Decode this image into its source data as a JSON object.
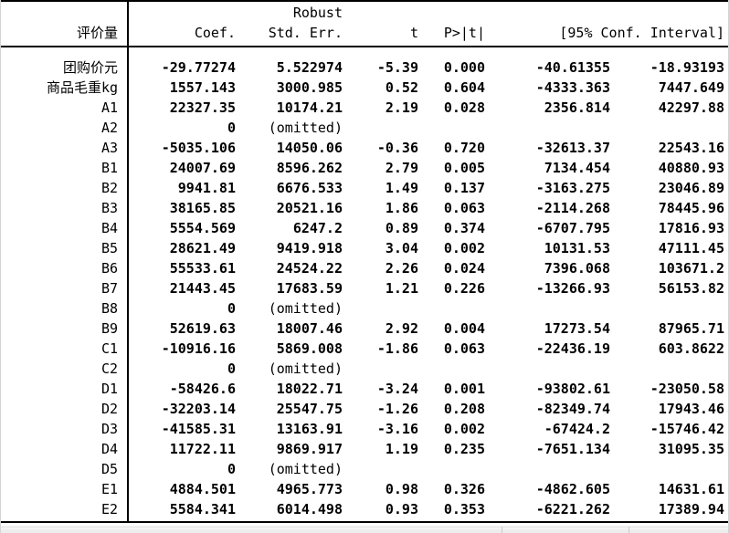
{
  "table": {
    "header": {
      "robust_label": "Robust",
      "col_variable": "评价量",
      "col_coef": "Coef.",
      "col_std_err": "Std. Err.",
      "col_t": "t",
      "col_p": "P>|t|",
      "col_ci": "[95% Conf. Interval]"
    },
    "rows": [
      {
        "label": "团购价元",
        "coef": "-29.77274",
        "se": "5.522974",
        "t": "-5.39",
        "p": "0.000",
        "ci_low": "-40.61355",
        "ci_high": "-18.93193"
      },
      {
        "label": "商品毛重kg",
        "coef": "1557.143",
        "se": "3000.985",
        "t": "0.52",
        "p": "0.604",
        "ci_low": "-4333.363",
        "ci_high": "7447.649"
      },
      {
        "label": "A1",
        "coef": "22327.35",
        "se": "10174.21",
        "t": "2.19",
        "p": "0.028",
        "ci_low": "2356.814",
        "ci_high": "42297.88"
      },
      {
        "label": "A2",
        "coef": "0",
        "se": "(omitted)",
        "t": "",
        "p": "",
        "ci_low": "",
        "ci_high": "",
        "omitted": true
      },
      {
        "label": "A3",
        "coef": "-5035.106",
        "se": "14050.06",
        "t": "-0.36",
        "p": "0.720",
        "ci_low": "-32613.37",
        "ci_high": "22543.16"
      },
      {
        "label": "B1",
        "coef": "24007.69",
        "se": "8596.262",
        "t": "2.79",
        "p": "0.005",
        "ci_low": "7134.454",
        "ci_high": "40880.93"
      },
      {
        "label": "B2",
        "coef": "9941.81",
        "se": "6676.533",
        "t": "1.49",
        "p": "0.137",
        "ci_low": "-3163.275",
        "ci_high": "23046.89"
      },
      {
        "label": "B3",
        "coef": "38165.85",
        "se": "20521.16",
        "t": "1.86",
        "p": "0.063",
        "ci_low": "-2114.268",
        "ci_high": "78445.96"
      },
      {
        "label": "B4",
        "coef": "5554.569",
        "se": "6247.2",
        "t": "0.89",
        "p": "0.374",
        "ci_low": "-6707.795",
        "ci_high": "17816.93"
      },
      {
        "label": "B5",
        "coef": "28621.49",
        "se": "9419.918",
        "t": "3.04",
        "p": "0.002",
        "ci_low": "10131.53",
        "ci_high": "47111.45"
      },
      {
        "label": "B6",
        "coef": "55533.61",
        "se": "24524.22",
        "t": "2.26",
        "p": "0.024",
        "ci_low": "7396.068",
        "ci_high": "103671.2"
      },
      {
        "label": "B7",
        "coef": "21443.45",
        "se": "17683.59",
        "t": "1.21",
        "p": "0.226",
        "ci_low": "-13266.93",
        "ci_high": "56153.82"
      },
      {
        "label": "B8",
        "coef": "0",
        "se": "(omitted)",
        "t": "",
        "p": "",
        "ci_low": "",
        "ci_high": "",
        "omitted": true
      },
      {
        "label": "B9",
        "coef": "52619.63",
        "se": "18007.46",
        "t": "2.92",
        "p": "0.004",
        "ci_low": "17273.54",
        "ci_high": "87965.71"
      },
      {
        "label": "C1",
        "coef": "-10916.16",
        "se": "5869.008",
        "t": "-1.86",
        "p": "0.063",
        "ci_low": "-22436.19",
        "ci_high": "603.8622"
      },
      {
        "label": "C2",
        "coef": "0",
        "se": "(omitted)",
        "t": "",
        "p": "",
        "ci_low": "",
        "ci_high": "",
        "omitted": true
      },
      {
        "label": "D1",
        "coef": "-58426.6",
        "se": "18022.71",
        "t": "-3.24",
        "p": "0.001",
        "ci_low": "-93802.61",
        "ci_high": "-23050.58"
      },
      {
        "label": "D2",
        "coef": "-32203.14",
        "se": "25547.75",
        "t": "-1.26",
        "p": "0.208",
        "ci_low": "-82349.74",
        "ci_high": "17943.46"
      },
      {
        "label": "D3",
        "coef": "-41585.31",
        "se": "13163.91",
        "t": "-3.16",
        "p": "0.002",
        "ci_low": "-67424.2",
        "ci_high": "-15746.42"
      },
      {
        "label": "D4",
        "coef": "11722.11",
        "se": "9869.917",
        "t": "1.19",
        "p": "0.235",
        "ci_low": "-7651.134",
        "ci_high": "31095.35"
      },
      {
        "label": "D5",
        "coef": "0",
        "se": "(omitted)",
        "t": "",
        "p": "",
        "ci_low": "",
        "ci_high": "",
        "omitted": true
      },
      {
        "label": "E1",
        "coef": "4884.501",
        "se": "4965.773",
        "t": "0.98",
        "p": "0.326",
        "ci_low": "-4862.605",
        "ci_high": "14631.61"
      },
      {
        "label": "E2",
        "coef": "5584.341",
        "se": "6014.498",
        "t": "0.93",
        "p": "0.353",
        "ci_low": "-6221.262",
        "ci_high": "17389.94"
      }
    ]
  }
}
